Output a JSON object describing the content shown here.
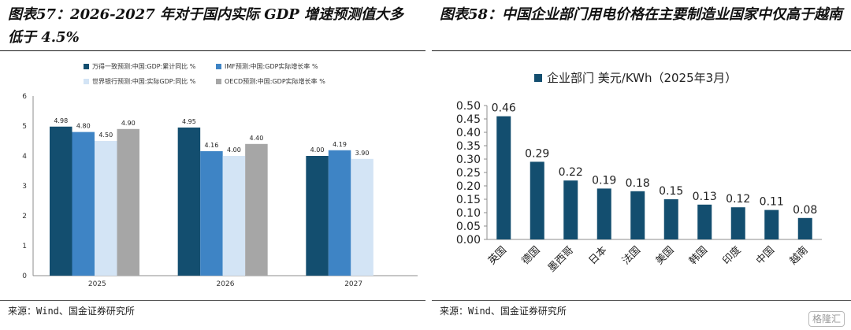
{
  "left": {
    "title": "图表57：2026-2027 年对于国内实际 GDP 增速预测值大多低于 4.5%",
    "source": "来源：Wind、国金证券研究所",
    "chart_data": {
      "type": "bar",
      "categories": [
        "2025",
        "2026",
        "2027"
      ],
      "series": [
        {
          "name": "万得一致预测:中国:GDP:累计同比 %",
          "color": "#134e6f",
          "values": [
            4.98,
            4.95,
            4.0
          ]
        },
        {
          "name": "IMF预测:中国:GDP实际增长率 %",
          "color": "#3e84c5",
          "values": [
            4.8,
            4.16,
            4.19
          ]
        },
        {
          "name": "世界银行预测:中国:实际GDP:同比 %",
          "color": "#d3e4f5",
          "values": [
            4.5,
            4.0,
            3.9
          ]
        },
        {
          "name": "OECD预测:中国:GDP实际增长率 %",
          "color": "#a6a6a6",
          "values": [
            4.9,
            4.4,
            null
          ]
        }
      ],
      "data_labels": [
        [
          "4.98",
          "4.80",
          "4.50",
          "4.90"
        ],
        [
          "4.95",
          "4.16",
          "4.00",
          "4.40"
        ],
        [
          "4.00",
          "4.19",
          "3.90",
          ""
        ]
      ],
      "yticks": [
        "0",
        "1",
        "2",
        "3",
        "4",
        "5",
        "6"
      ],
      "ylim": [
        0,
        6
      ],
      "grid": false,
      "legend_position": "top"
    }
  },
  "right": {
    "title": "图表58：中国企业部门用电价格在主要制造业国家中仅高于越南",
    "source": "来源：Wind、国金证券研究所",
    "chart_data": {
      "type": "bar",
      "categories": [
        "英国",
        "德国",
        "墨西哥",
        "日本",
        "法国",
        "美国",
        "韩国",
        "印度",
        "中国",
        "越南"
      ],
      "series": [
        {
          "name": "企业部门 美元/KWh（2025年3月）",
          "color": "#134e6f",
          "values": [
            0.46,
            0.29,
            0.22,
            0.19,
            0.18,
            0.15,
            0.13,
            0.12,
            0.11,
            0.08
          ]
        }
      ],
      "data_labels": [
        "0.46",
        "0.29",
        "0.22",
        "0.19",
        "0.18",
        "0.15",
        "0.13",
        "0.12",
        "0.11",
        "0.08"
      ],
      "yticks": [
        "0.00",
        "0.05",
        "0.10",
        "0.15",
        "0.20",
        "0.25",
        "0.30",
        "0.35",
        "0.40",
        "0.45",
        "0.50"
      ],
      "ylim": [
        0,
        0.5
      ],
      "grid": false,
      "legend_position": "top"
    }
  },
  "watermark": "格隆汇"
}
